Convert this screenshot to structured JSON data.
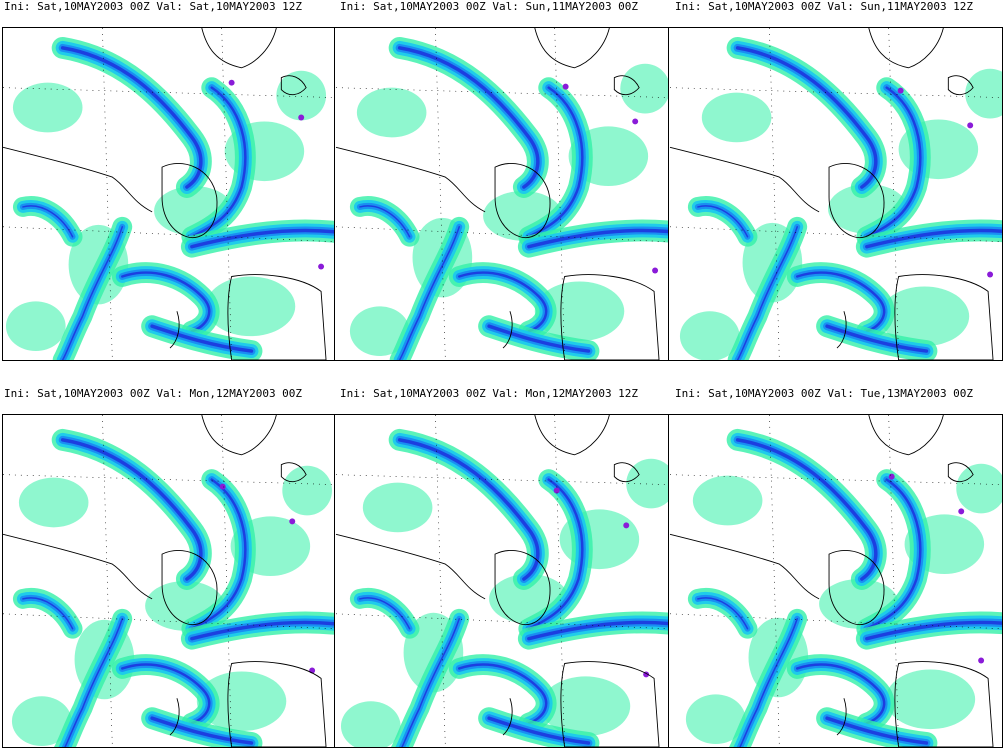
{
  "colors": {
    "light": "#33f0a8",
    "cyan": "#18c8f0",
    "mid": "#1a8ff2",
    "deep": "#1c3fe0",
    "core": "#8a1bd8",
    "coast": "#000000"
  },
  "panels": [
    {
      "ini_label": "Ini:",
      "ini": "Sat,10MAY2003 00Z",
      "val_label": "Val:",
      "val": "Sat,10MAY2003 12Z"
    },
    {
      "ini_label": "Ini:",
      "ini": "Sat,10MAY2003 00Z",
      "val_label": "Val:",
      "val": "Sun,11MAY2003 00Z"
    },
    {
      "ini_label": "Ini:",
      "ini": "Sat,10MAY2003 00Z",
      "val_label": "Val:",
      "val": "Sun,11MAY2003 12Z"
    },
    {
      "ini_label": "Ini:",
      "ini": "Sat,10MAY2003 00Z",
      "val_label": "Val:",
      "val": "Mon,12MAY2003 00Z"
    },
    {
      "ini_label": "Ini:",
      "ini": "Sat,10MAY2003 00Z",
      "val_label": "Val:",
      "val": "Mon,12MAY2003 12Z"
    },
    {
      "ini_label": "Ini:",
      "ini": "Sat,10MAY2003 00Z",
      "val_label": "Val:",
      "val": "Tue,13MAY2003 00Z"
    }
  ]
}
